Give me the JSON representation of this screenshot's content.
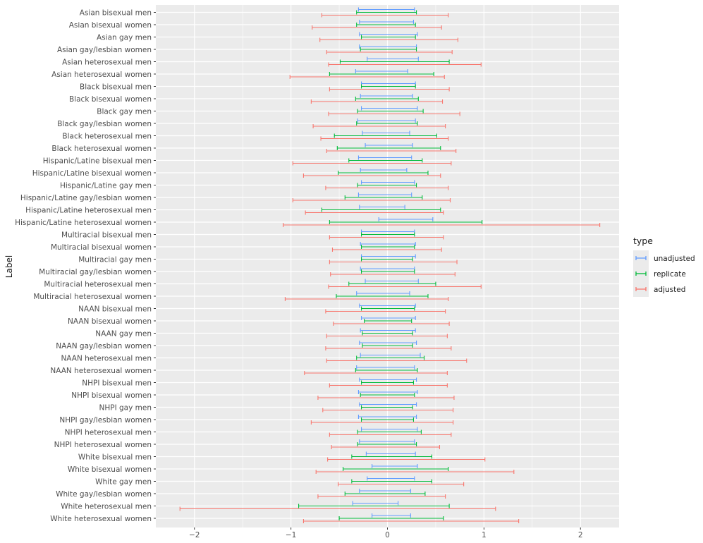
{
  "chart_data": {
    "type": "errorbar",
    "title": "",
    "xlabel": "",
    "ylabel": "Label",
    "xlim": [
      -2.4,
      2.4
    ],
    "x_ticks": [
      -2,
      -1,
      0,
      1,
      2
    ],
    "x_tick_labels": [
      "−2",
      "−1",
      "0",
      "1",
      "2"
    ],
    "legend": {
      "title": "type",
      "position": "right",
      "entries": [
        {
          "name": "unadjusted",
          "color": "#619CFF"
        },
        {
          "name": "replicate",
          "color": "#00BA38"
        },
        {
          "name": "adjusted",
          "color": "#F8766D"
        }
      ]
    },
    "colors": {
      "panel": "#EBEBEB",
      "grid": "#FFFFFF"
    },
    "categories": [
      "Asian bisexual men",
      "Asian bisexual women",
      "Asian gay men",
      "Asian gay/lesbian women",
      "Asian heterosexual men",
      "Asian heterosexual women",
      "Black bisexual men",
      "Black bisexual women",
      "Black gay men",
      "Black gay/lesbian women",
      "Black heterosexual men",
      "Black heterosexual women",
      "Hispanic/Latine bisexual men",
      "Hispanic/Latine bisexual women",
      "Hispanic/Latine gay men",
      "Hispanic/Latine gay/lesbian women",
      "Hispanic/Latine heterosexual men",
      "Hispanic/Latine heterosexual women",
      "Multiracial bisexual men",
      "Multiracial bisexual women",
      "Multiracial gay men",
      "Multiracial gay/lesbian women",
      "Multiracial heterosexual men",
      "Multiracial heterosexual women",
      "NAAN bisexual men",
      "NAAN bisexual women",
      "NAAN gay men",
      "NAAN gay/lesbian women",
      "NAAN heterosexual men",
      "NAAN heterosexual women",
      "NHPI bisexual men",
      "NHPI bisexual women",
      "NHPI gay men",
      "NHPI gay/lesbian women",
      "NHPI heterosexual men",
      "NHPI heterosexual women",
      "White bisexual men",
      "White bisexual women",
      "White gay men",
      "White gay/lesbian women",
      "White heterosexual men",
      "White heterosexual women"
    ],
    "series": [
      {
        "name": "unadjusted",
        "color": "#619CFF",
        "intervals": [
          [
            -0.3,
            0.28
          ],
          [
            -0.29,
            0.27
          ],
          [
            -0.29,
            0.31
          ],
          [
            -0.29,
            0.3
          ],
          [
            -0.21,
            0.32
          ],
          [
            -0.33,
            0.21
          ],
          [
            -0.27,
            0.29
          ],
          [
            -0.28,
            0.26
          ],
          [
            -0.27,
            0.31
          ],
          [
            -0.31,
            0.29
          ],
          [
            -0.26,
            0.23
          ],
          [
            -0.23,
            0.26
          ],
          [
            -0.3,
            0.25
          ],
          [
            -0.28,
            0.2
          ],
          [
            -0.27,
            0.28
          ],
          [
            -0.3,
            0.25
          ],
          [
            -0.29,
            0.18
          ],
          [
            -0.09,
            0.47
          ],
          [
            -0.27,
            0.28
          ],
          [
            -0.28,
            0.29
          ],
          [
            -0.27,
            0.29
          ],
          [
            -0.28,
            0.28
          ],
          [
            -0.23,
            0.32
          ],
          [
            -0.32,
            0.23
          ],
          [
            -0.29,
            0.29
          ],
          [
            -0.27,
            0.29
          ],
          [
            -0.28,
            0.29
          ],
          [
            -0.29,
            0.3
          ],
          [
            -0.28,
            0.34
          ],
          [
            -0.32,
            0.28
          ],
          [
            -0.29,
            0.3
          ],
          [
            -0.3,
            0.31
          ],
          [
            -0.29,
            0.3
          ],
          [
            -0.3,
            0.3
          ],
          [
            -0.27,
            0.31
          ],
          [
            -0.29,
            0.28
          ],
          [
            -0.22,
            0.29
          ],
          [
            -0.16,
            0.31
          ],
          [
            -0.21,
            0.28
          ],
          [
            -0.29,
            0.24
          ],
          [
            -0.36,
            0.11
          ],
          [
            -0.16,
            0.24
          ]
        ]
      },
      {
        "name": "replicate",
        "color": "#00BA38",
        "intervals": [
          [
            -0.32,
            0.3
          ],
          [
            -0.32,
            0.29
          ],
          [
            -0.27,
            0.29
          ],
          [
            -0.28,
            0.3
          ],
          [
            -0.49,
            0.64
          ],
          [
            -0.6,
            0.48
          ],
          [
            -0.27,
            0.29
          ],
          [
            -0.33,
            0.32
          ],
          [
            -0.31,
            0.37
          ],
          [
            -0.32,
            0.31
          ],
          [
            -0.55,
            0.51
          ],
          [
            -0.52,
            0.55
          ],
          [
            -0.4,
            0.36
          ],
          [
            -0.51,
            0.42
          ],
          [
            -0.31,
            0.3
          ],
          [
            -0.44,
            0.36
          ],
          [
            -0.68,
            0.55
          ],
          [
            -0.6,
            0.98
          ],
          [
            -0.27,
            0.28
          ],
          [
            -0.27,
            0.28
          ],
          [
            -0.27,
            0.26
          ],
          [
            -0.27,
            0.28
          ],
          [
            -0.4,
            0.5
          ],
          [
            -0.53,
            0.42
          ],
          [
            -0.27,
            0.28
          ],
          [
            -0.24,
            0.25
          ],
          [
            -0.26,
            0.26
          ],
          [
            -0.26,
            0.26
          ],
          [
            -0.32,
            0.38
          ],
          [
            -0.33,
            0.31
          ],
          [
            -0.27,
            0.27
          ],
          [
            -0.28,
            0.28
          ],
          [
            -0.27,
            0.26
          ],
          [
            -0.27,
            0.27
          ],
          [
            -0.31,
            0.35
          ],
          [
            -0.31,
            0.3
          ],
          [
            -0.37,
            0.46
          ],
          [
            -0.46,
            0.63
          ],
          [
            -0.37,
            0.46
          ],
          [
            -0.44,
            0.39
          ],
          [
            -0.92,
            0.64
          ],
          [
            -0.5,
            0.58
          ]
        ]
      },
      {
        "name": "adjusted",
        "color": "#F8766D",
        "intervals": [
          [
            -0.68,
            0.63
          ],
          [
            -0.78,
            0.56
          ],
          [
            -0.7,
            0.73
          ],
          [
            -0.63,
            0.67
          ],
          [
            -0.61,
            0.97
          ],
          [
            -1.01,
            0.59
          ],
          [
            -0.6,
            0.64
          ],
          [
            -0.79,
            0.57
          ],
          [
            -0.61,
            0.75
          ],
          [
            -0.77,
            0.6
          ],
          [
            -0.69,
            0.63
          ],
          [
            -0.63,
            0.71
          ],
          [
            -0.98,
            0.66
          ],
          [
            -0.87,
            0.55
          ],
          [
            -0.64,
            0.63
          ],
          [
            -0.98,
            0.65
          ],
          [
            -0.85,
            0.58
          ],
          [
            -1.08,
            2.2
          ],
          [
            -0.6,
            0.58
          ],
          [
            -0.57,
            0.56
          ],
          [
            -0.6,
            0.72
          ],
          [
            -0.59,
            0.7
          ],
          [
            -0.61,
            0.97
          ],
          [
            -1.06,
            0.63
          ],
          [
            -0.64,
            0.6
          ],
          [
            -0.56,
            0.64
          ],
          [
            -0.63,
            0.62
          ],
          [
            -0.64,
            0.66
          ],
          [
            -0.63,
            0.82
          ],
          [
            -0.86,
            0.62
          ],
          [
            -0.6,
            0.62
          ],
          [
            -0.72,
            0.69
          ],
          [
            -0.67,
            0.68
          ],
          [
            -0.79,
            0.68
          ],
          [
            -0.6,
            0.66
          ],
          [
            -0.58,
            0.54
          ],
          [
            -0.62,
            1.01
          ],
          [
            -0.74,
            1.31
          ],
          [
            -0.51,
            0.79
          ],
          [
            -0.72,
            0.6
          ],
          [
            -2.15,
            1.12
          ],
          [
            -0.87,
            1.36
          ]
        ]
      }
    ]
  }
}
